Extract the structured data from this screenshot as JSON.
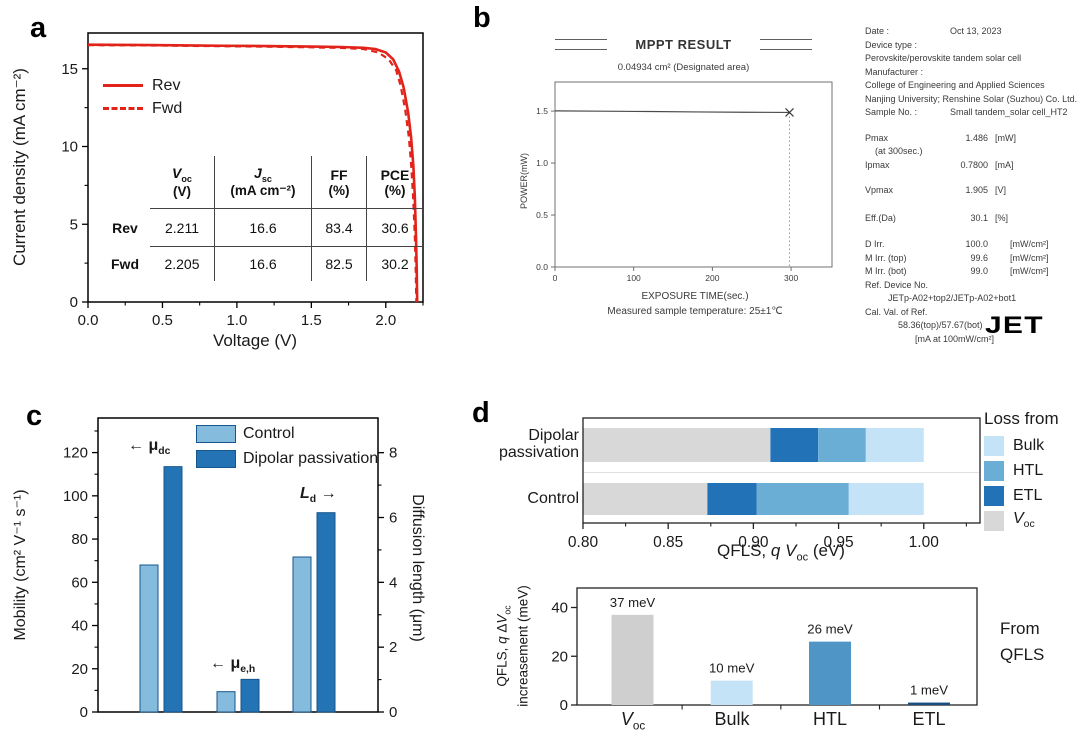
{
  "panels": {
    "a": {
      "label": "a",
      "xlabel": "Voltage (V)",
      "ylabel": "Current density (mA cm⁻²)",
      "line_color": "#e2231a",
      "legend": [
        {
          "label": "Rev"
        },
        {
          "label": "Fwd"
        }
      ],
      "table": {
        "headers": [
          {
            "main": "V",
            "sub": "oc",
            "unit": "(V)"
          },
          {
            "main": "J",
            "sub": "sc",
            "unit": "(mA cm⁻²)"
          },
          {
            "main": "FF",
            "unit": "(%)"
          },
          {
            "main": "PCE",
            "unit": "(%)"
          }
        ],
        "rows": [
          {
            "name": "Rev",
            "values": [
              "2.211",
              "16.6",
              "83.4",
              "30.6"
            ]
          },
          {
            "name": "Fwd",
            "values": [
              "2.205",
              "16.6",
              "82.5",
              "30.2"
            ]
          }
        ]
      }
    },
    "b": {
      "label": "b",
      "title": "MPPT RESULT",
      "subtitle": "0.04934 cm² (Designated area)",
      "ylabel": "POWER(mW)",
      "xlabel": "EXPOSURE TIME(sec.)",
      "temperature_note": "Measured sample temperature: 25±1℃",
      "logo": "JET",
      "info": [
        {
          "l": "Date :",
          "v": "Oct 13, 2023"
        },
        {
          "l": "Device type :"
        },
        {
          "t": "Perovskite/perovskite tandem solar cell"
        },
        {
          "l": "Manufacturer :"
        },
        {
          "t": "College of Engineering and Applied Sciences"
        },
        {
          "t": "Nanjing University; Renshine Solar (Suzhou) Co. Ltd."
        },
        {
          "l": "Sample No. :",
          "v": "Small tandem_solar cell_HT2"
        },
        {
          "l": "Pmax",
          "v": "1.486",
          "u": "[mW]",
          "num": true,
          "mt": 12
        },
        {
          "t": "(at 300sec.)",
          "indent": 10
        },
        {
          "l": "Ipmax",
          "v": "0.7800",
          "u": "[mA]",
          "num": true
        },
        {
          "l": "Vpmax",
          "v": "1.905",
          "u": "[V]",
          "num": true,
          "mt": 12
        },
        {
          "l": "Eff.(Da)",
          "v": "30.1",
          "u": "[%]",
          "num": true,
          "mt": 14
        },
        {
          "l": "D Irr.",
          "v": "100.0",
          "u": "[mW/cm²]",
          "num": true,
          "wide": true,
          "mt": 13
        },
        {
          "l": "M Irr. (top)",
          "v": "99.6",
          "u": "[mW/cm²]",
          "num": true,
          "wide": true
        },
        {
          "l": "M Irr. (bot)",
          "v": "99.0",
          "u": "[mW/cm²]",
          "num": true,
          "wide": true
        },
        {
          "l": "Ref. Device No."
        },
        {
          "t": "JETp-A02+top2/JETp-A02+bot1",
          "indent": 23
        },
        {
          "l": "Cal. Val. of Ref."
        },
        {
          "t": "58.36(top)/57.67(bot)",
          "indent": 33
        },
        {
          "t": "[mA at 100mW/cm²]",
          "indent": 50
        }
      ]
    },
    "c": {
      "label": "c",
      "ylabel_left": "Mobility (cm² V⁻¹ s⁻¹)",
      "ylabel_right": "Diffusion length (μm)",
      "legend": [
        {
          "label": "Control",
          "color": "#85bcdd"
        },
        {
          "label": "Dipolar passivation",
          "color": "#2473b5"
        }
      ],
      "annotations": [
        {
          "prefix": "← ",
          "main": "μ",
          "sub": "dc"
        },
        {
          "prefix": "← ",
          "main": "μ",
          "sub": "e,h"
        },
        {
          "main": "L",
          "sub": "d",
          "suffix": " →"
        }
      ]
    },
    "d": {
      "label": "d",
      "stack": {
        "categories": [
          {
            "line1": "Dipolar",
            "line2": "passivation"
          },
          {
            "line1": "Control",
            "line2": ""
          }
        ],
        "xlabel_parts": {
          "p1": "QFLS, ",
          "q": "q",
          "sp": " ",
          "v": "V",
          "sub": "oc",
          "unit": " (eV)"
        },
        "legend_title": "Loss from",
        "legend": [
          {
            "label": "Bulk",
            "color": "#c5e3f6"
          },
          {
            "label": "HTL",
            "color": "#6aaed6"
          },
          {
            "label": "ETL",
            "color": "#2272b8"
          },
          {
            "main": "V",
            "sub": "oc",
            "color": "#d8d8d8"
          }
        ]
      },
      "increase": {
        "ylabel_parts": {
          "p1": "QFLS, ",
          "q": "q",
          "p2": " Δ",
          "v": "V",
          "sub": "oc",
          "line2": "increasement (meV)"
        },
        "categories": [
          {
            "main": "V",
            "sub": "oc"
          },
          {
            "label": "Bulk"
          },
          {
            "label": "HTL"
          },
          {
            "label": "ETL"
          }
        ],
        "side_lines": [
          "From",
          "QFLS"
        ]
      }
    }
  },
  "chart_data": [
    {
      "id": "a_jv",
      "type": "line",
      "title": "J-V curves",
      "xlabel": "Voltage (V)",
      "ylabel": "Current density (mA cm⁻²)",
      "xlim": [
        0,
        2.25
      ],
      "ylim": [
        0,
        17.3
      ],
      "xticks": [
        {
          "v": 0,
          "l": "0.0"
        },
        {
          "v": 0.5,
          "l": "0.5"
        },
        {
          "v": 1,
          "l": "1.0"
        },
        {
          "v": 1.5,
          "l": "1.5"
        },
        {
          "v": 2,
          "l": "2.0"
        }
      ],
      "xticks_minor": [
        0.25,
        0.75,
        1.25,
        1.75,
        2.25
      ],
      "yticks": [
        {
          "v": 0,
          "l": "0"
        },
        {
          "v": 5,
          "l": "5"
        },
        {
          "v": 10,
          "l": "10"
        },
        {
          "v": 15,
          "l": "15"
        }
      ],
      "yticks_minor": [
        2.5,
        7.5,
        12.5
      ],
      "series": [
        {
          "name": "Rev",
          "style": "solid",
          "color": "#e2231a",
          "params": {
            "Voc_V": 2.211,
            "Jsc_mA_cm2": 16.6,
            "FF_pct": 83.4,
            "PCE_pct": 30.6
          },
          "points": [
            [
              0,
              16.55
            ],
            [
              0.3,
              16.53
            ],
            [
              0.6,
              16.51
            ],
            [
              0.9,
              16.48
            ],
            [
              1.2,
              16.46
            ],
            [
              1.5,
              16.43
            ],
            [
              1.7,
              16.4
            ],
            [
              1.85,
              16.35
            ],
            [
              1.93,
              16.27
            ],
            [
              2.0,
              16.05
            ],
            [
              2.05,
              15.6
            ],
            [
              2.09,
              14.8
            ],
            [
              2.12,
              13.8
            ],
            [
              2.15,
              12.2
            ],
            [
              2.17,
              10.6
            ],
            [
              2.185,
              8.8
            ],
            [
              2.195,
              6.8
            ],
            [
              2.203,
              4.2
            ],
            [
              2.208,
              2.0
            ],
            [
              2.211,
              0
            ]
          ]
        },
        {
          "name": "Fwd",
          "style": "dashed",
          "color": "#e2231a",
          "params": {
            "Voc_V": 2.205,
            "Jsc_mA_cm2": 16.6,
            "FF_pct": 82.5,
            "PCE_pct": 30.2
          },
          "points": [
            [
              0,
              16.52
            ],
            [
              0.4,
              16.5
            ],
            [
              0.8,
              16.46
            ],
            [
              1.2,
              16.42
            ],
            [
              1.5,
              16.38
            ],
            [
              1.7,
              16.34
            ],
            [
              1.85,
              16.27
            ],
            [
              1.95,
              16.05
            ],
            [
              2.02,
              15.6
            ],
            [
              2.07,
              14.9
            ],
            [
              2.1,
              13.9
            ],
            [
              2.13,
              12.4
            ],
            [
              2.155,
              10.6
            ],
            [
              2.17,
              8.9
            ],
            [
              2.185,
              6.5
            ],
            [
              2.195,
              4.2
            ],
            [
              2.202,
              1.8
            ],
            [
              2.205,
              0
            ]
          ]
        }
      ]
    },
    {
      "id": "b_mppt",
      "type": "line",
      "title": "MPPT RESULT",
      "xlabel": "EXPOSURE TIME(sec.)",
      "ylabel": "POWER(mW)",
      "xlim": [
        0,
        352
      ],
      "ylim": [
        0,
        1.78
      ],
      "xticks": [
        {
          "v": 0,
          "l": "0"
        },
        {
          "v": 100,
          "l": "100"
        },
        {
          "v": 200,
          "l": "200"
        },
        {
          "v": 300,
          "l": "300"
        }
      ],
      "yticks": [
        {
          "v": 0,
          "l": "0.0"
        },
        {
          "v": 0.5,
          "l": "0.5"
        },
        {
          "v": 1,
          "l": "1.0"
        },
        {
          "v": 1.5,
          "l": "1.5"
        }
      ],
      "series": [
        {
          "name": "MPPT power",
          "color": "#4a4a4a",
          "points": [
            [
              0,
              1.502
            ],
            [
              60,
              1.499
            ],
            [
              120,
              1.496
            ],
            [
              180,
              1.492
            ],
            [
              240,
              1.489
            ],
            [
              298,
              1.487
            ]
          ]
        }
      ],
      "end_marker": {
        "x": 298,
        "y": 1.487,
        "symbol": "X"
      },
      "vline_x": 298
    },
    {
      "id": "c_mobility",
      "type": "grouped-bar",
      "ylabel_left": "Mobility (cm² V⁻¹ s⁻¹)",
      "ylabel_right": "Diffusion length (μm)",
      "ylim_left": [
        0,
        136
      ],
      "ylim_right": [
        0,
        9.07
      ],
      "yticks_left": [
        0,
        20,
        40,
        60,
        80,
        100,
        120
      ],
      "yticks_left_minor": [
        10,
        30,
        50,
        70,
        90,
        110,
        130
      ],
      "yticks_right": [
        0,
        2,
        4,
        6,
        8
      ],
      "yticks_right_minor": [
        1,
        3,
        5,
        7
      ],
      "series": [
        "Control",
        "Dipolar passivation"
      ],
      "series_colors": [
        "#85bcdd",
        "#2473b5"
      ],
      "bar_outline": "#17568c",
      "groups": [
        {
          "label": "μdc",
          "axis": "left",
          "values": [
            68,
            113.5
          ]
        },
        {
          "label": "μe,h",
          "axis": "left",
          "values": [
            9.4,
            15.1
          ]
        },
        {
          "label": "Ld",
          "axis": "right",
          "values": [
            4.8,
            6.15
          ],
          "values_left_scale": [
            71.7,
            92.2
          ]
        }
      ]
    },
    {
      "id": "d_qfls_stack",
      "type": "stacked-bar-horizontal",
      "xlabel": "QFLS, q Voc (eV)",
      "xlim": [
        0.8,
        1.033
      ],
      "xticks": [
        {
          "v": 0.8,
          "l": "0.80"
        },
        {
          "v": 0.85,
          "l": "0.85"
        },
        {
          "v": 0.9,
          "l": "0.90"
        },
        {
          "v": 0.95,
          "l": "0.95"
        },
        {
          "v": 1,
          "l": "1.00"
        }
      ],
      "xticks_minor": [
        0.825,
        0.875,
        0.925,
        0.975,
        1.025
      ],
      "segments": [
        "Voc",
        "ETL",
        "HTL",
        "Bulk"
      ],
      "segment_colors": [
        "#d8d8d8",
        "#2272b8",
        "#6aaed6",
        "#c5e3f6"
      ],
      "bars": [
        {
          "category": "Dipolar passivation",
          "bounds": [
            0.8,
            0.91,
            0.938,
            0.966,
            1.0
          ]
        },
        {
          "category": "Control",
          "bounds": [
            0.8,
            0.873,
            0.902,
            0.956,
            1.0
          ]
        }
      ],
      "legend_title": "Loss from",
      "legend": [
        "Bulk",
        "HTL",
        "ETL",
        "Voc"
      ]
    },
    {
      "id": "d_qfls_increase",
      "type": "bar",
      "ylabel": "QFLS, q ΔVoc increasement (meV)",
      "categories": [
        "Voc",
        "Bulk",
        "HTL",
        "ETL"
      ],
      "values": [
        37,
        10,
        26,
        1
      ],
      "value_labels": [
        "37 meV",
        "10 meV",
        "26 meV",
        "1 meV"
      ],
      "colors": [
        "#cfcfcf",
        "#c5e3f6",
        "#4f96c6",
        "#1b4f7e"
      ],
      "ylim": [
        0,
        48
      ],
      "yticks": [
        0,
        20,
        40
      ],
      "side_note": "From QFLS"
    }
  ]
}
